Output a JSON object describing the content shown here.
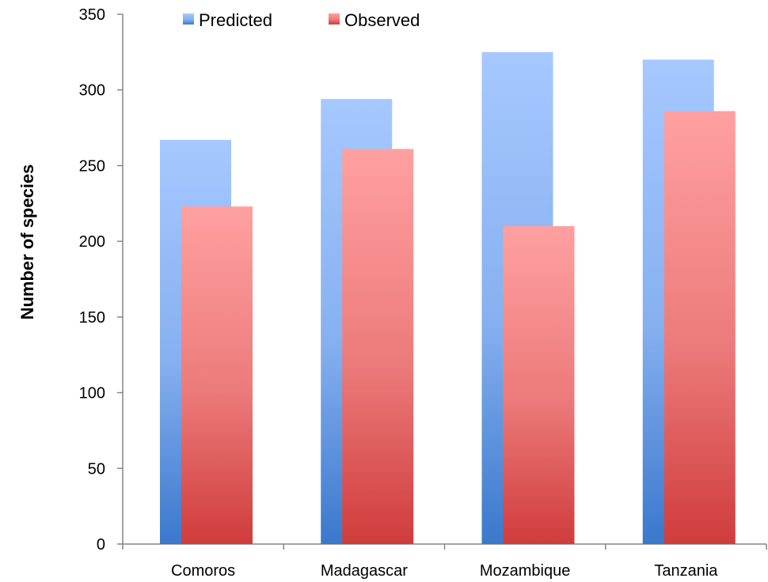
{
  "chart_data": {
    "type": "bar",
    "categories": [
      "Comoros",
      "Madagascar",
      "Mozambique",
      "Tanzania"
    ],
    "series": [
      {
        "name": "Predicted",
        "values": [
          267,
          294,
          325,
          320
        ],
        "color": "#4f87d6"
      },
      {
        "name": "Observed",
        "values": [
          223,
          261,
          210,
          286
        ],
        "color": "#e05a5a"
      }
    ],
    "xlabel": "",
    "ylabel": "Number of species",
    "ylim": [
      0,
      350
    ],
    "yticks": [
      0,
      50,
      100,
      150,
      200,
      250,
      300,
      350
    ],
    "grid": false,
    "legend": "top"
  }
}
